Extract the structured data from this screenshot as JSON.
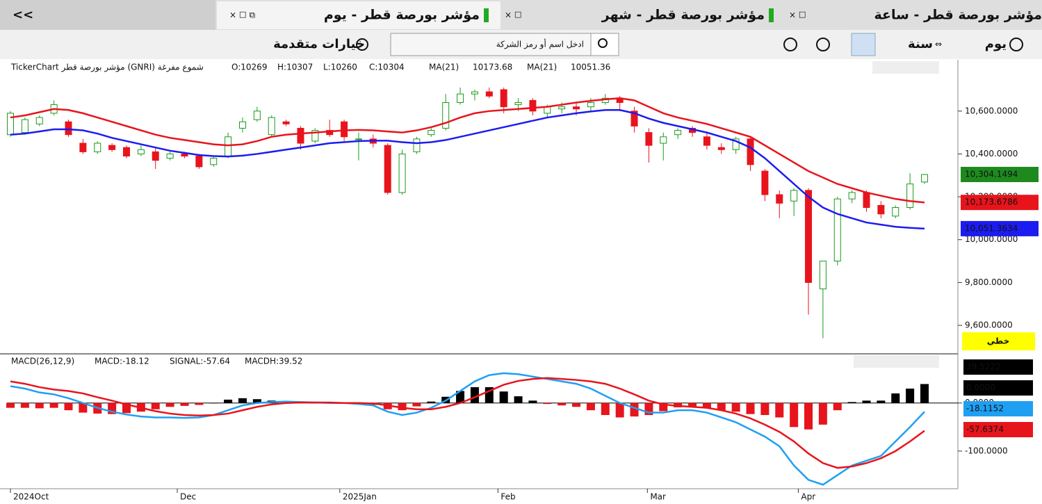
{
  "ui": {
    "collapse": "<<",
    "tabs": [
      "مؤشر بورصة قطر - يوم",
      "مؤشر بورصة قطر - شهر",
      "مؤشر بورصة قطر - ساعة"
    ],
    "toolbar": {
      "day": "يوم",
      "year": "سنة",
      "search_placeholder": "ادخل اسم أو رمز الشركة",
      "advanced": "خيارات متقدمة"
    },
    "line_mode": "خطي"
  },
  "chart_data": [
    {
      "type": "candlestick",
      "title": "TickerChart مؤشر بورصة قطر (GNRI) شموع مفرغة",
      "info_labels": [
        "O:10269",
        "H:10307",
        "L:10260",
        "C:10304"
      ],
      "up_color": "#1a9a1a",
      "down_color": "#e8141c",
      "ohlc": [
        [
          10490,
          10600,
          10480,
          10590
        ],
        [
          10500,
          10570,
          10490,
          10560
        ],
        [
          10540,
          10580,
          10530,
          10570
        ],
        [
          10590,
          10650,
          10580,
          10630
        ],
        [
          10550,
          10560,
          10480,
          10490
        ],
        [
          10450,
          10470,
          10400,
          10410
        ],
        [
          10410,
          10460,
          10400,
          10450
        ],
        [
          10440,
          10450,
          10410,
          10420
        ],
        [
          10430,
          10440,
          10380,
          10390
        ],
        [
          10400,
          10440,
          10390,
          10420
        ],
        [
          10410,
          10430,
          10330,
          10370
        ],
        [
          10380,
          10410,
          10370,
          10400
        ],
        [
          10400,
          10410,
          10380,
          10390
        ],
        [
          10390,
          10400,
          10330,
          10340
        ],
        [
          10350,
          10390,
          10340,
          10380
        ],
        [
          10390,
          10500,
          10380,
          10480
        ],
        [
          10520,
          10570,
          10500,
          10550
        ],
        [
          10560,
          10620,
          10550,
          10600
        ],
        [
          10490,
          10580,
          10480,
          10570
        ],
        [
          10550,
          10560,
          10530,
          10540
        ],
        [
          10520,
          10530,
          10420,
          10450
        ],
        [
          10460,
          10520,
          10450,
          10510
        ],
        [
          10510,
          10560,
          10480,
          10490
        ],
        [
          10550,
          10560,
          10460,
          10480
        ],
        [
          10470,
          10500,
          10370,
          10470
        ],
        [
          10470,
          10490,
          10430,
          10450
        ],
        [
          10440,
          10450,
          10210,
          10220
        ],
        [
          10220,
          10420,
          10210,
          10400
        ],
        [
          10410,
          10480,
          10400,
          10470
        ],
        [
          10490,
          10520,
          10480,
          10510
        ],
        [
          10520,
          10680,
          10510,
          10640
        ],
        [
          10640,
          10710,
          10630,
          10680
        ],
        [
          10680,
          10700,
          10650,
          10690
        ],
        [
          10690,
          10710,
          10660,
          10670
        ],
        [
          10700,
          10710,
          10590,
          10620
        ],
        [
          10630,
          10660,
          10600,
          10640
        ],
        [
          10650,
          10660,
          10580,
          10600
        ],
        [
          10590,
          10630,
          10570,
          10620
        ],
        [
          10610,
          10640,
          10590,
          10620
        ],
        [
          10620,
          10640,
          10580,
          10610
        ],
        [
          10620,
          10660,
          10600,
          10640
        ],
        [
          10640,
          10680,
          10630,
          10660
        ],
        [
          10660,
          10670,
          10600,
          10640
        ],
        [
          10600,
          10620,
          10500,
          10530
        ],
        [
          10500,
          10520,
          10360,
          10440
        ],
        [
          10450,
          10500,
          10370,
          10480
        ],
        [
          10490,
          10520,
          10470,
          10510
        ],
        [
          10520,
          10530,
          10480,
          10500
        ],
        [
          10480,
          10500,
          10420,
          10440
        ],
        [
          10430,
          10450,
          10400,
          10420
        ],
        [
          10420,
          10480,
          10400,
          10470
        ],
        [
          10470,
          10480,
          10320,
          10350
        ],
        [
          10320,
          10330,
          10180,
          10210
        ],
        [
          10210,
          10230,
          10100,
          10170
        ],
        [
          10180,
          10240,
          10110,
          10230
        ],
        [
          10230,
          10240,
          9650,
          9800
        ],
        [
          9770,
          9900,
          9540,
          9900
        ],
        [
          9900,
          10200,
          9880,
          10190
        ],
        [
          10190,
          10230,
          10170,
          10220
        ],
        [
          10220,
          10230,
          10130,
          10150
        ],
        [
          10160,
          10180,
          10100,
          10120
        ],
        [
          10110,
          10160,
          10100,
          10150
        ],
        [
          10150,
          10310,
          10140,
          10260
        ],
        [
          10269,
          10307,
          10260,
          10304
        ]
      ],
      "series": [
        {
          "name": "MA(21)",
          "color": "#e8141c",
          "last_label": "10173.68",
          "values": [
            10570,
            10580,
            10595,
            10610,
            10605,
            10590,
            10570,
            10550,
            10530,
            10510,
            10490,
            10475,
            10465,
            10455,
            10445,
            10440,
            10445,
            10460,
            10480,
            10490,
            10495,
            10500,
            10505,
            10510,
            10512,
            10510,
            10505,
            10500,
            10510,
            10525,
            10545,
            10570,
            10590,
            10600,
            10605,
            10610,
            10615,
            10620,
            10630,
            10640,
            10648,
            10655,
            10660,
            10650,
            10620,
            10590,
            10570,
            10555,
            10540,
            10520,
            10500,
            10480,
            10440,
            10400,
            10360,
            10320,
            10290,
            10260,
            10240,
            10220,
            10205,
            10190,
            10180,
            10173.68
          ]
        },
        {
          "name": "MA(21)",
          "color": "#1c1cf0",
          "last_label": "10051.36",
          "values": [
            10490,
            10495,
            10505,
            10515,
            10515,
            10510,
            10495,
            10475,
            10460,
            10445,
            10430,
            10415,
            10405,
            10395,
            10390,
            10388,
            10392,
            10400,
            10410,
            10420,
            10430,
            10440,
            10450,
            10455,
            10460,
            10462,
            10462,
            10455,
            10450,
            10455,
            10465,
            10480,
            10495,
            10510,
            10525,
            10540,
            10555,
            10570,
            10580,
            10590,
            10598,
            10605,
            10605,
            10590,
            10565,
            10545,
            10530,
            10515,
            10500,
            10480,
            10460,
            10430,
            10380,
            10320,
            10260,
            10200,
            10150,
            10120,
            10100,
            10080,
            10070,
            10060,
            10055,
            10051.36
          ]
        }
      ],
      "tags": [
        {
          "value": 10304.1494,
          "label": "10,304.1494",
          "color": "#1e8a1e"
        },
        {
          "value": 10173.6786,
          "label": "10,173.6786",
          "color": "#e8141c"
        },
        {
          "value": 10051.3634,
          "label": "10,051.3634",
          "color": "#1c1cf0"
        }
      ],
      "xlim": [
        -0.24,
        65.3
      ],
      "ylim": [
        9480,
        10820
      ],
      "yticks": [
        {
          "value": 9600,
          "label": "9,600.0000"
        },
        {
          "value": 9800,
          "label": "9,800.0000"
        },
        {
          "value": 10000,
          "label": "10,000.0000"
        },
        {
          "value": 10200,
          "label": "10,200.0000"
        },
        {
          "value": 10400,
          "label": "10,400.0000"
        },
        {
          "value": 10600,
          "label": "10,600.0000"
        }
      ],
      "xticks": [
        {
          "value": 0,
          "label": "2024Oct"
        },
        {
          "value": 11.5,
          "label": "Dec"
        },
        {
          "value": 22.7,
          "label": "2025Jan"
        },
        {
          "value": 33.6,
          "label": "Feb"
        },
        {
          "value": 43.9,
          "label": "Mar"
        },
        {
          "value": 54.3,
          "label": "Apr"
        }
      ]
    },
    {
      "type": "macd",
      "title": "MACD(26,12,9)",
      "info_labels": [
        {
          "text": "MACD:-18.12",
          "color": "#1e9ff2"
        },
        {
          "text": "SIGNAL:-57.64",
          "color": "#e8141c"
        },
        {
          "text": "MACDH:39.52",
          "color": "#000000"
        }
      ],
      "series": [
        {
          "name": "MACD",
          "color": "#1e9ff2",
          "values": [
            35,
            30,
            22,
            18,
            10,
            0,
            -10,
            -18,
            -24,
            -28,
            -30,
            -30,
            -31,
            -30,
            -25,
            -15,
            -5,
            0,
            2,
            3,
            2,
            1,
            0,
            0,
            -2,
            -5,
            -18,
            -25,
            -20,
            -10,
            5,
            25,
            45,
            58,
            62,
            60,
            55,
            50,
            45,
            40,
            30,
            15,
            0,
            -10,
            -20,
            -20,
            -15,
            -15,
            -20,
            -30,
            -40,
            -55,
            -70,
            -90,
            -130,
            -160,
            -170,
            -150,
            -130,
            -120,
            -110,
            -80,
            -50,
            -18.12
          ]
        },
        {
          "name": "SIGNAL",
          "color": "#e8141c",
          "values": [
            45,
            40,
            33,
            28,
            25,
            20,
            12,
            5,
            -3,
            -10,
            -17,
            -22,
            -25,
            -26,
            -25,
            -22,
            -15,
            -8,
            -3,
            0,
            1,
            1,
            1,
            0,
            0,
            -1,
            -5,
            -10,
            -13,
            -13,
            -8,
            0,
            12,
            25,
            38,
            46,
            50,
            52,
            50,
            48,
            45,
            40,
            30,
            18,
            5,
            -3,
            -6,
            -8,
            -10,
            -15,
            -22,
            -32,
            -45,
            -60,
            -80,
            -105,
            -125,
            -135,
            -132,
            -125,
            -115,
            -100,
            -80,
            -57.64
          ]
        }
      ],
      "histogram": {
        "name": "MACDH",
        "up_color": "#000000",
        "down_color": "#e8141c",
        "values": [
          -10,
          -10,
          -11,
          -10,
          -15,
          -20,
          -22,
          -23,
          -21,
          -18,
          -13,
          -8,
          -6,
          -4,
          0,
          7,
          10,
          8,
          5,
          3,
          1,
          0,
          -1,
          0,
          -2,
          -4,
          -13,
          -15,
          -7,
          3,
          13,
          25,
          33,
          33,
          24,
          14,
          5,
          -2,
          -5,
          -8,
          -15,
          -25,
          -30,
          -28,
          -25,
          -17,
          -9,
          -7,
          -10,
          -15,
          -18,
          -23,
          -25,
          -30,
          -50,
          -55,
          -45,
          -15,
          2,
          5,
          5,
          20,
          30,
          39.52
        ]
      },
      "tags": [
        {
          "value": 39.5222,
          "label": "39.5222",
          "color": "#000000"
        },
        {
          "value": 0,
          "label": "0.0000",
          "color": "#000000"
        },
        {
          "value": -18.1152,
          "label": "-18.1152",
          "color": "#1e9ff2"
        },
        {
          "value": -57.6374,
          "label": "-57.6374",
          "color": "#e8141c"
        }
      ],
      "xlim": [
        -0.24,
        65.3
      ],
      "ylim": [
        -174,
        98
      ],
      "yticks": [
        {
          "value": -100,
          "label": "-100.0000"
        },
        {
          "value": 0,
          "label": "0.0000"
        }
      ]
    }
  ]
}
